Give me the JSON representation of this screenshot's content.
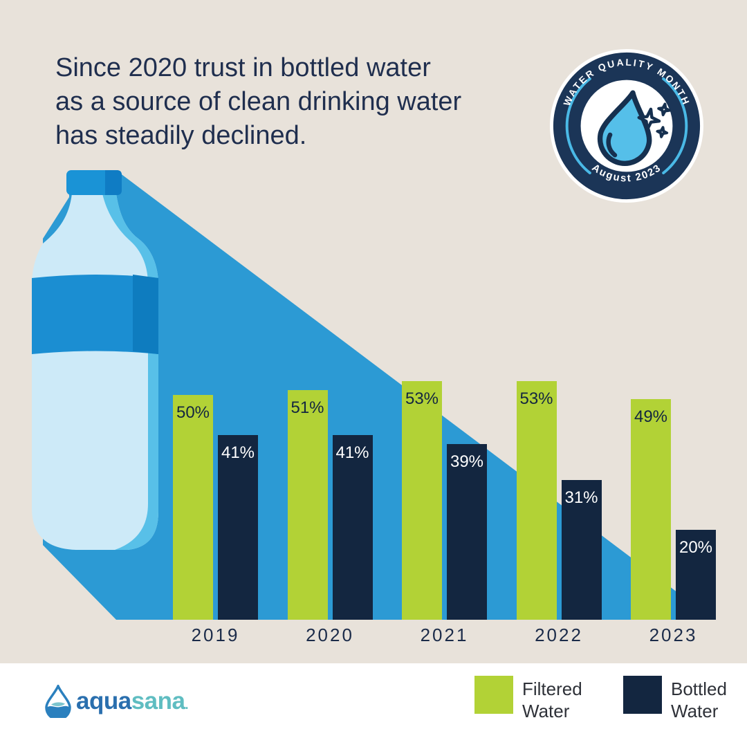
{
  "page": {
    "background_color": "#e8e2da",
    "bottom_bar_color": "#ffffff"
  },
  "headline": {
    "lines": [
      "Since 2020 trust in bottled water",
      "as a source of clean drinking water",
      "has steadily declined."
    ],
    "color": "#1f2e4e"
  },
  "badge": {
    "top_text": "WATER QUALITY MONTH",
    "bottom_text": "August 2023",
    "ring_color": "#1b3557",
    "accent_color": "#4ab9e6",
    "drop_fill": "#55bfe9",
    "drop_outline": "#16304f"
  },
  "illustration": {
    "shadow_color": "#2c9ad4",
    "bottle_body_color": "#cdeaf8",
    "bottle_shade_color": "#58c0e8",
    "label_band_color": "#1b8ed2",
    "label_band_dark_color": "#0e7cbf",
    "cap_color": "#1a93d6",
    "cap_dark_color": "#0f7cc4"
  },
  "chart_data": {
    "type": "bar",
    "categories": [
      "2019",
      "2020",
      "2021",
      "2022",
      "2023"
    ],
    "series": [
      {
        "name": "Filtered Water",
        "color": "#b2d236",
        "label_color": "#132640",
        "values": [
          50,
          51,
          53,
          53,
          49
        ]
      },
      {
        "name": "Bottled Water",
        "color": "#132640",
        "label_color": "#ffffff",
        "values": [
          41,
          41,
          39,
          31,
          20
        ]
      }
    ],
    "value_suffix": "%",
    "ylim": [
      0,
      100
    ],
    "grid": false,
    "legend_position": "bottom-right",
    "x_axis_label_color": "#1b2b49"
  },
  "legend": {
    "items": [
      {
        "label": "Filtered Water",
        "color": "#b2d236"
      },
      {
        "label": "Bottled Water",
        "color": "#132640"
      }
    ]
  },
  "logo": {
    "text_primary": "aqua",
    "text_secondary": "sana",
    "trademark": ".",
    "primary_color": "#2a6fae",
    "secondary_color": "#5fbdc1"
  }
}
